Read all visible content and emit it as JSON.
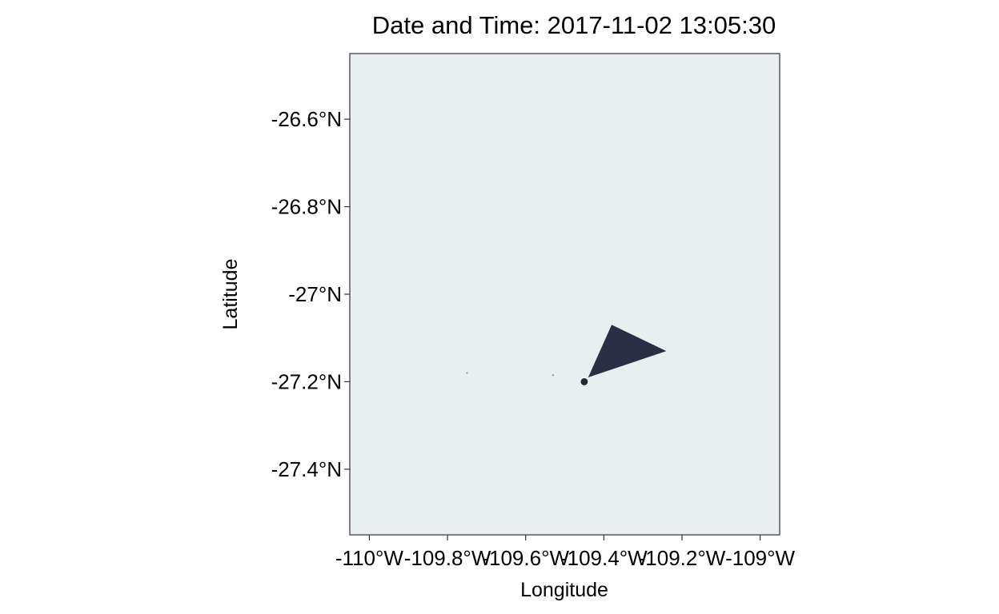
{
  "chart_data": {
    "type": "scatter",
    "title": "Date and Time: 2017-11-02 13:05:30",
    "xlabel": "Longitude",
    "ylabel": "Latitude",
    "xlim": [
      -110.05,
      -108.95
    ],
    "ylim": [
      -27.55,
      -26.45
    ],
    "x_ticks": [
      -110,
      -109.8,
      -109.6,
      -109.4,
      -109.2,
      -109
    ],
    "x_tick_labels": [
      "-110°W",
      "-109.8°W",
      "-109.6°W",
      "-109.4°W",
      "-109.2°W",
      "-109°W"
    ],
    "y_ticks": [
      -26.6,
      -26.8,
      -27,
      -27.2,
      -27.4
    ],
    "y_tick_labels": [
      "-26.6°N",
      "-26.8°N",
      "-27°N",
      "-27.2°N",
      "-27.4°N"
    ],
    "grid": false,
    "legend": "none",
    "background_color": "#e9eff0",
    "position": {
      "lon": -109.45,
      "lat": -27.2,
      "color": "#1e2b3d"
    },
    "direction_triangle": {
      "color": "#2b2f45",
      "points": [
        [
          -109.44,
          -27.19
        ],
        [
          -109.38,
          -27.07
        ],
        [
          -109.24,
          -27.13
        ]
      ]
    },
    "land_points": [
      {
        "lon": -109.75,
        "lat": -27.18,
        "color": "#4a90d9"
      },
      {
        "lon": -109.53,
        "lat": -27.185,
        "color": "#4a90d9"
      }
    ]
  }
}
